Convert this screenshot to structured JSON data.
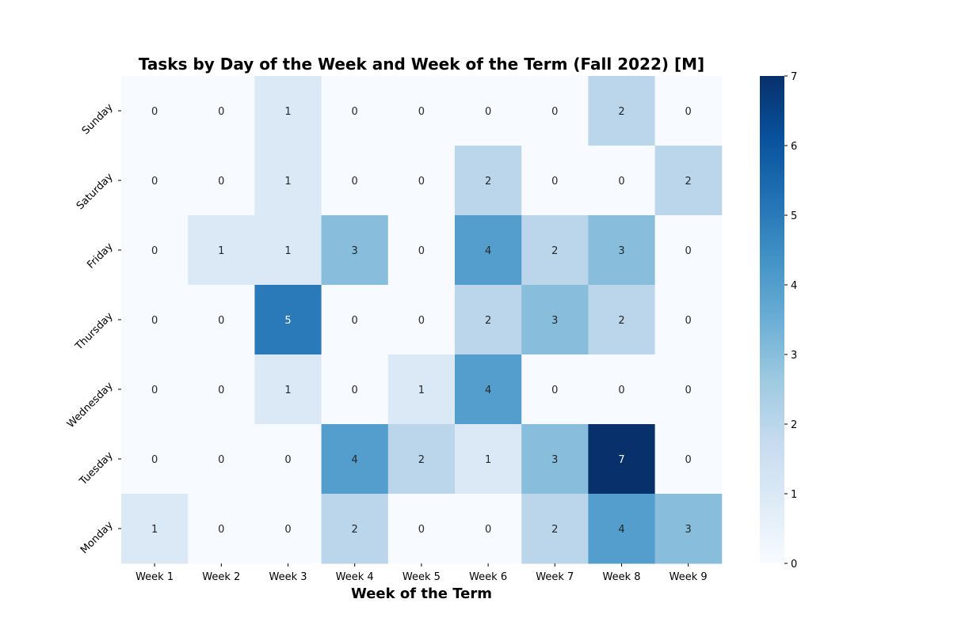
{
  "chart_data": {
    "type": "heatmap",
    "title": "Tasks by Day of the Week and Week of the Term (Fall 2022) [M]",
    "xlabel": "Week of the Term",
    "ylabel": "",
    "x_categories": [
      "Week 1",
      "Week 2",
      "Week 3",
      "Week 4",
      "Week 5",
      "Week 6",
      "Week 7",
      "Week 8",
      "Week 9"
    ],
    "y_categories": [
      "Sunday",
      "Saturday",
      "Friday",
      "Thursday",
      "Wednesday",
      "Tuesday",
      "Monday"
    ],
    "values": [
      [
        0,
        0,
        1,
        0,
        0,
        0,
        0,
        2,
        0
      ],
      [
        0,
        0,
        1,
        0,
        0,
        2,
        0,
        0,
        2
      ],
      [
        0,
        1,
        1,
        3,
        0,
        4,
        2,
        3,
        0
      ],
      [
        0,
        0,
        5,
        0,
        0,
        2,
        3,
        2,
        0
      ],
      [
        0,
        0,
        1,
        0,
        1,
        4,
        0,
        0,
        0
      ],
      [
        0,
        0,
        0,
        4,
        2,
        1,
        3,
        7,
        0
      ],
      [
        1,
        0,
        0,
        2,
        0,
        0,
        2,
        4,
        3
      ]
    ],
    "colormap": "Blues",
    "colorbar": {
      "range": [
        0,
        7
      ],
      "ticks": [
        "0",
        "1",
        "2",
        "3",
        "4",
        "5",
        "6",
        "7"
      ]
    },
    "annotations": true
  }
}
